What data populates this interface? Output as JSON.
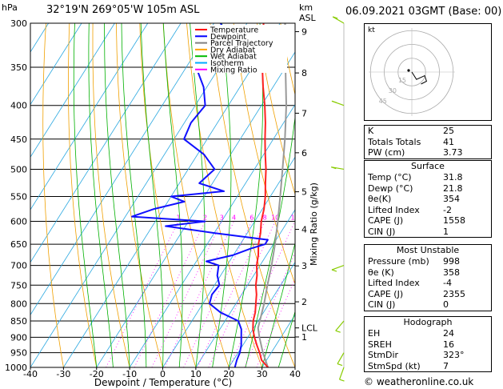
{
  "header": {
    "p_unit": "hPa",
    "location": "32°19'N 269°05'W 105m ASL",
    "km_label": "km",
    "asl_label": "ASL",
    "datetime": "06.09.2021 03GMT (Base: 00)"
  },
  "chart_data": {
    "type": "skewt",
    "xlabel": "Dewpoint / Temperature (°C)",
    "ylabel_right": "Mixing Ratio (g/kg)",
    "xlim": [
      -40,
      40
    ],
    "ylim_hpa": [
      1000,
      300
    ],
    "x_ticks": [
      "-40",
      "-30",
      "-20",
      "-10",
      "0",
      "10",
      "20",
      "30",
      "40"
    ],
    "pressure_ticks": [
      300,
      350,
      400,
      450,
      500,
      550,
      600,
      650,
      700,
      750,
      800,
      850,
      900,
      950,
      1000
    ],
    "km_ticks": [
      {
        "label": "9",
        "p": 309
      },
      {
        "label": "8",
        "p": 357
      },
      {
        "label": "7",
        "p": 411
      },
      {
        "label": "6",
        "p": 472
      },
      {
        "label": "5",
        "p": 541
      },
      {
        "label": "4",
        "p": 617
      },
      {
        "label": "3",
        "p": 701
      },
      {
        "label": "2",
        "p": 795
      },
      {
        "label": "LCL",
        "p": 871
      },
      {
        "label": "1",
        "p": 899
      }
    ],
    "mixing_ratio_labels": [
      "1",
      "2",
      "3",
      "4",
      "6",
      "8",
      "10",
      "15",
      "20",
      "25"
    ],
    "legend": [
      {
        "label": "Temperature",
        "color": "#ff0000"
      },
      {
        "label": "Dewpoint",
        "color": "#0000ff"
      },
      {
        "label": "Parcel Trajectory",
        "color": "#808080"
      },
      {
        "label": "Dry Adiabat",
        "color": "#ffa500"
      },
      {
        "label": "Wet Adiabat",
        "color": "#00bb00"
      },
      {
        "label": "Isotherm",
        "color": "#00aaff"
      },
      {
        "label": "Mixing Ratio",
        "color": "#ff00ff"
      }
    ],
    "temperature": [
      [
        1000,
        31.8
      ],
      [
        975,
        28.5
      ],
      [
        950,
        26.5
      ],
      [
        925,
        24.2
      ],
      [
        900,
        22.0
      ],
      [
        875,
        20.0
      ],
      [
        850,
        18.5
      ],
      [
        825,
        17.5
      ],
      [
        800,
        16.0
      ],
      [
        775,
        14.5
      ],
      [
        750,
        12.5
      ],
      [
        725,
        11.0
      ],
      [
        700,
        9.0
      ],
      [
        675,
        7.5
      ],
      [
        650,
        5.5
      ],
      [
        625,
        4.0
      ],
      [
        600,
        2.0
      ],
      [
        575,
        0.5
      ],
      [
        550,
        -1.5
      ],
      [
        525,
        -4.0
      ],
      [
        500,
        -6.5
      ],
      [
        475,
        -9.5
      ],
      [
        450,
        -12.5
      ],
      [
        425,
        -15.5
      ],
      [
        400,
        -19.0
      ],
      [
        375,
        -23.0
      ],
      [
        350,
        -27.0
      ],
      [
        325,
        -31.0
      ],
      [
        300,
        -35.0
      ]
    ],
    "dewpoint": [
      [
        1000,
        21.8
      ],
      [
        975,
        21.0
      ],
      [
        950,
        20.5
      ],
      [
        925,
        19.5
      ],
      [
        900,
        18.0
      ],
      [
        875,
        16.5
      ],
      [
        850,
        14.0
      ],
      [
        825,
        7.0
      ],
      [
        800,
        2.0
      ],
      [
        775,
        1.0
      ],
      [
        750,
        1.5
      ],
      [
        725,
        -1.0
      ],
      [
        700,
        -2.5
      ],
      [
        690,
        -7.0
      ],
      [
        675,
        0.0
      ],
      [
        660,
        4.0
      ],
      [
        650,
        7.5
      ],
      [
        640,
        7.5
      ],
      [
        625,
        -10.0
      ],
      [
        610,
        -26.0
      ],
      [
        600,
        -15.0
      ],
      [
        590,
        -38.0
      ],
      [
        575,
        -33.0
      ],
      [
        560,
        -25.0
      ],
      [
        550,
        -30.0
      ],
      [
        540,
        -15.0
      ],
      [
        525,
        -24.0
      ],
      [
        500,
        -22.0
      ],
      [
        475,
        -28.0
      ],
      [
        450,
        -37.0
      ],
      [
        425,
        -38.0
      ],
      [
        400,
        -37.0
      ],
      [
        375,
        -41.0
      ],
      [
        350,
        -47.0
      ],
      [
        330,
        -45.0
      ],
      [
        315,
        -43.0
      ],
      [
        300,
        -48.0
      ]
    ],
    "parcel": [
      [
        1000,
        31.8
      ],
      [
        950,
        27.5
      ],
      [
        900,
        23.5
      ],
      [
        871,
        21.3
      ],
      [
        850,
        20.5
      ],
      [
        800,
        18.5
      ],
      [
        750,
        16.0
      ],
      [
        700,
        13.5
      ],
      [
        650,
        10.5
      ],
      [
        600,
        7.0
      ],
      [
        550,
        3.0
      ],
      [
        500,
        -1.5
      ],
      [
        450,
        -6.5
      ],
      [
        400,
        -12.5
      ],
      [
        350,
        -20.0
      ],
      [
        300,
        -28.5
      ]
    ],
    "wind_barbs": [
      {
        "p": 1000,
        "dir": 200,
        "spd": 5
      },
      {
        "p": 950,
        "dir": 210,
        "spd": 5
      },
      {
        "p": 850,
        "dir": 220,
        "spd": 5
      },
      {
        "p": 700,
        "dir": 250,
        "spd": 5
      },
      {
        "p": 500,
        "dir": 280,
        "spd": 10
      },
      {
        "p": 400,
        "dir": 290,
        "spd": 10
      },
      {
        "p": 300,
        "dir": 300,
        "spd": 10
      }
    ]
  },
  "hodograph": {
    "unit_label": "kt",
    "ring_labels": [
      "15",
      "30",
      "45"
    ],
    "trace": [
      [
        0,
        0
      ],
      [
        5,
        -8
      ],
      [
        14,
        -4
      ],
      [
        16,
        -10
      ],
      [
        10,
        -13
      ]
    ]
  },
  "indices": {
    "k": {
      "label": "K",
      "value": "25"
    },
    "totals": {
      "label": "Totals Totals",
      "value": "41"
    },
    "pw": {
      "label": "PW (cm)",
      "value": "3.73"
    }
  },
  "surface": {
    "title": "Surface",
    "temp": {
      "label": "Temp (°C)",
      "value": "31.8"
    },
    "dewp": {
      "label": "Dewp (°C)",
      "value": "21.8"
    },
    "theta_e": {
      "label": "θe(K)",
      "value": "354"
    },
    "li": {
      "label": "Lifted Index",
      "value": "-2"
    },
    "cape": {
      "label": "CAPE (J)",
      "value": "1558"
    },
    "cin": {
      "label": "CIN (J)",
      "value": "1"
    }
  },
  "most_unstable": {
    "title": "Most Unstable",
    "pressure": {
      "label": "Pressure (mb)",
      "value": "998"
    },
    "theta_e": {
      "label": "θe (K)",
      "value": "358"
    },
    "li": {
      "label": "Lifted Index",
      "value": "-4"
    },
    "cape": {
      "label": "CAPE (J)",
      "value": "2355"
    },
    "cin": {
      "label": "CIN (J)",
      "value": "0"
    }
  },
  "hodograph_table": {
    "title": "Hodograph",
    "eh": {
      "label": "EH",
      "value": "24"
    },
    "sreh": {
      "label": "SREH",
      "value": "16"
    },
    "stmdir": {
      "label": "StmDir",
      "value": "323°"
    },
    "stmspd": {
      "label": "StmSpd (kt)",
      "value": "7"
    }
  },
  "footer": "© weatheronline.co.uk"
}
